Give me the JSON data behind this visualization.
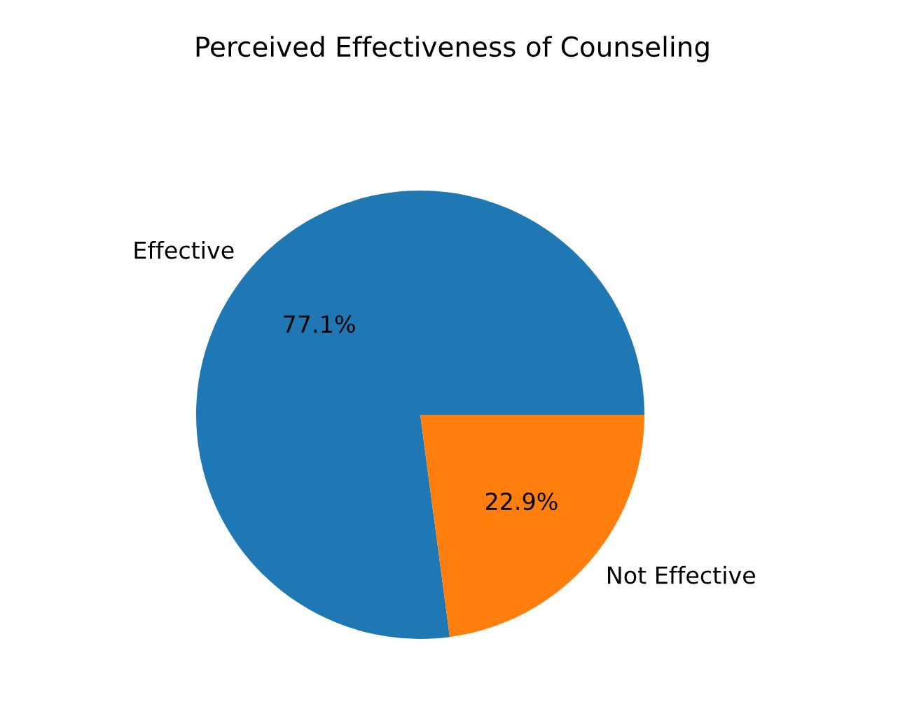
{
  "chart_data": {
    "type": "pie",
    "title": "Perceived Effectiveness of Counseling",
    "categories": [
      "Effective",
      "Not Effective"
    ],
    "values": [
      77.1,
      22.9
    ],
    "colors": [
      "#1f77b4",
      "#ff7f0e"
    ],
    "value_labels": [
      "77.1%",
      "22.9%"
    ]
  }
}
